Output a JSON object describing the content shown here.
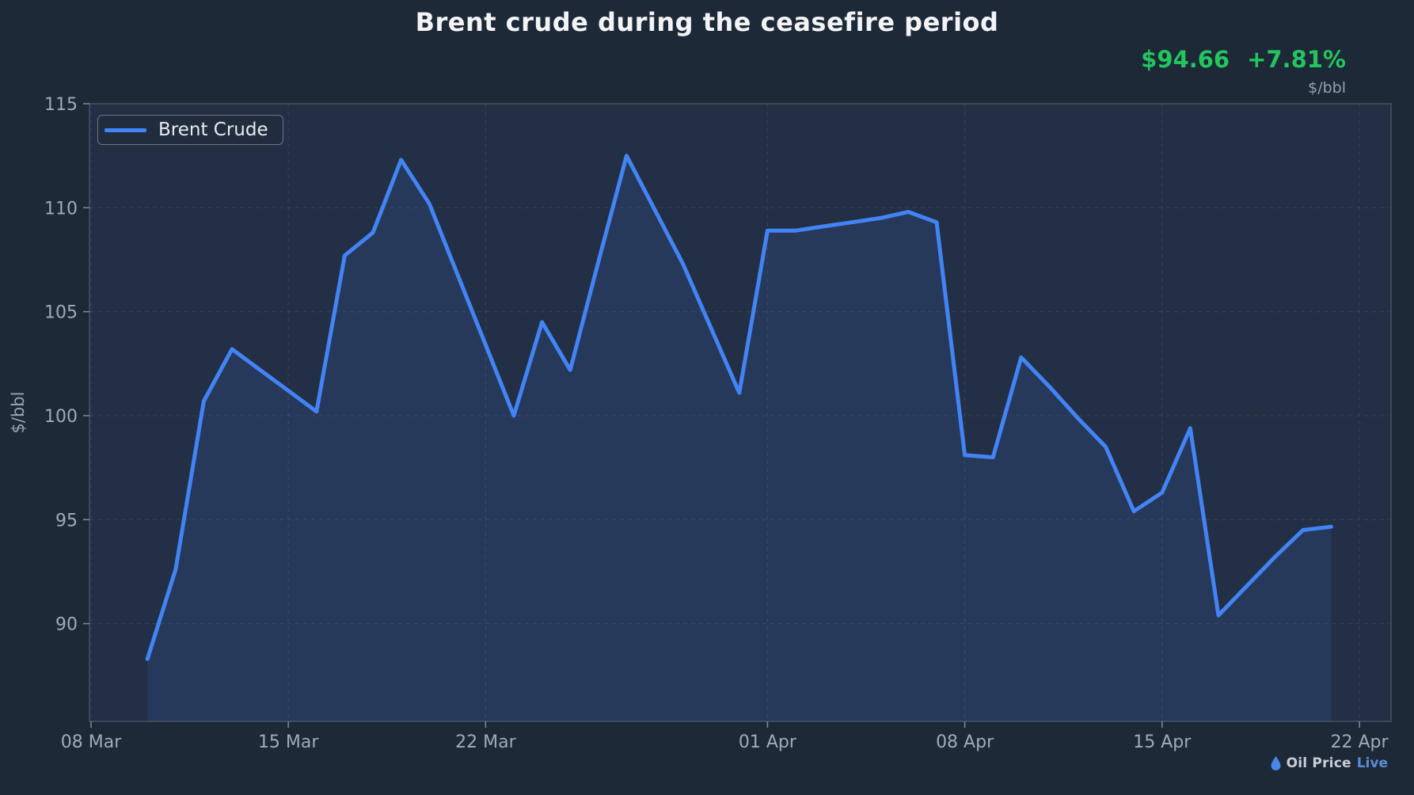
{
  "title": "Brent crude during the ceasefire period",
  "header": {
    "price": "$94.66",
    "change": "+7.81%",
    "unit": "$/bbl"
  },
  "legend": {
    "label": "Brent Crude"
  },
  "watermark": {
    "icon": "droplet-icon",
    "brand": "Oil Price",
    "brand_accent": "Live"
  },
  "colors": {
    "page_bg": "#1e2937",
    "plot_bg": "#232f44",
    "line": "#4284f5",
    "area_fill": "rgba(66,132,245,0.13)",
    "grid": "rgba(170,185,205,0.13)",
    "border": "#465264",
    "tick_text": "#a0aab8",
    "tick_mark": "#818b9a",
    "title_text": "#f2f4f7",
    "accent_green": "#22c55e"
  },
  "chart_data": {
    "type": "area",
    "title": "Brent crude during the ceasefire period",
    "series_name": "Brent Crude",
    "xlabel": "",
    "ylabel": "$/bbl",
    "ylim": [
      85.3,
      115
    ],
    "grid": true,
    "legend_position": "top-left",
    "y_ticks": [
      115,
      110,
      105,
      100,
      95,
      90
    ],
    "x_ticks": [
      {
        "label": "08 Mar",
        "day": 0
      },
      {
        "label": "15 Mar",
        "day": 7
      },
      {
        "label": "22 Mar",
        "day": 14
      },
      {
        "label": "01 Apr",
        "day": 24
      },
      {
        "label": "08 Apr",
        "day": 31
      },
      {
        "label": "15 Apr",
        "day": 38
      },
      {
        "label": "22 Apr",
        "day": 45
      }
    ],
    "points": [
      {
        "date": "10 Mar",
        "day": 2,
        "value": 88.3
      },
      {
        "date": "11 Mar",
        "day": 3,
        "value": 92.6
      },
      {
        "date": "12 Mar",
        "day": 4,
        "value": 100.7
      },
      {
        "date": "13 Mar",
        "day": 5,
        "value": 103.2
      },
      {
        "date": "14 Mar",
        "day": 6,
        "value": 102.2
      },
      {
        "date": "15 Mar",
        "day": 7,
        "value": 101.2
      },
      {
        "date": "16 Mar",
        "day": 8,
        "value": 100.2
      },
      {
        "date": "17 Mar",
        "day": 9,
        "value": 107.7
      },
      {
        "date": "18 Mar",
        "day": 10,
        "value": 108.8
      },
      {
        "date": "19 Mar",
        "day": 11,
        "value": 112.3
      },
      {
        "date": "20 Mar",
        "day": 12,
        "value": 110.2
      },
      {
        "date": "21 Mar",
        "day": 13,
        "value": 106.8
      },
      {
        "date": "22 Mar",
        "day": 14,
        "value": 103.4
      },
      {
        "date": "23 Mar",
        "day": 15,
        "value": 100.0
      },
      {
        "date": "24 Mar",
        "day": 16,
        "value": 104.5
      },
      {
        "date": "25 Mar",
        "day": 17,
        "value": 102.2
      },
      {
        "date": "26 Mar",
        "day": 18,
        "value": 107.4
      },
      {
        "date": "27 Mar",
        "day": 19,
        "value": 112.5
      },
      {
        "date": "28 Mar",
        "day": 20,
        "value": 109.9
      },
      {
        "date": "29 Mar",
        "day": 21,
        "value": 107.3
      },
      {
        "date": "30 Mar",
        "day": 22,
        "value": 104.2
      },
      {
        "date": "31 Mar",
        "day": 23,
        "value": 101.1
      },
      {
        "date": "01 Apr",
        "day": 24,
        "value": 108.9
      },
      {
        "date": "02 Apr",
        "day": 25,
        "value": 108.9
      },
      {
        "date": "03 Apr",
        "day": 26,
        "value": 109.1
      },
      {
        "date": "04 Apr",
        "day": 27,
        "value": 109.3
      },
      {
        "date": "05 Apr",
        "day": 28,
        "value": 109.5
      },
      {
        "date": "06 Apr",
        "day": 29,
        "value": 109.8
      },
      {
        "date": "07 Apr",
        "day": 30,
        "value": 109.3
      },
      {
        "date": "08 Apr",
        "day": 31,
        "value": 98.1
      },
      {
        "date": "09 Apr",
        "day": 32,
        "value": 98.0
      },
      {
        "date": "10 Apr",
        "day": 33,
        "value": 102.8
      },
      {
        "date": "11 Apr",
        "day": 34,
        "value": 101.4
      },
      {
        "date": "12 Apr",
        "day": 35,
        "value": 99.9
      },
      {
        "date": "13 Apr",
        "day": 36,
        "value": 98.5
      },
      {
        "date": "14 Apr",
        "day": 37,
        "value": 95.4
      },
      {
        "date": "15 Apr",
        "day": 38,
        "value": 96.3
      },
      {
        "date": "16 Apr",
        "day": 39,
        "value": 99.4
      },
      {
        "date": "17 Apr",
        "day": 40,
        "value": 90.4
      },
      {
        "date": "18 Apr",
        "day": 41,
        "value": 91.8
      },
      {
        "date": "19 Apr",
        "day": 42,
        "value": 93.2
      },
      {
        "date": "20 Apr",
        "day": 43,
        "value": 94.5
      },
      {
        "date": "21 Apr",
        "day": 44,
        "value": 94.66
      }
    ]
  }
}
